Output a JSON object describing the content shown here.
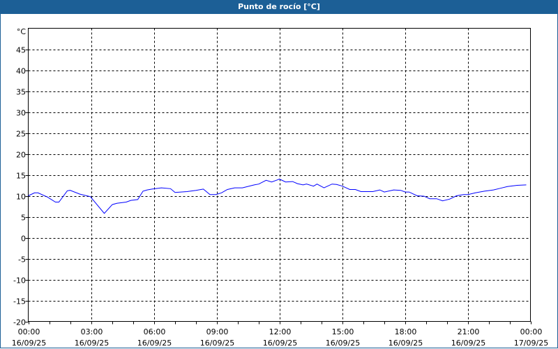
{
  "window": {
    "title": "Punto de rocío [°C]"
  },
  "chart_data": {
    "type": "line",
    "title": "Punto de rocío [°C]",
    "ylabel": "°C",
    "xlabel": "",
    "ylim": [
      -20,
      50
    ],
    "yticks": [
      -20,
      -15,
      -10,
      -5,
      0,
      5,
      10,
      15,
      20,
      25,
      30,
      35,
      40,
      45
    ],
    "xlim": [
      "16/09/25 00:00",
      "17/09/25 00:00"
    ],
    "xticks": [
      {
        "time": "00:00",
        "date": "16/09/25"
      },
      {
        "time": "03:00",
        "date": "16/09/25"
      },
      {
        "time": "06:00",
        "date": "16/09/25"
      },
      {
        "time": "09:00",
        "date": "16/09/25"
      },
      {
        "time": "12:00",
        "date": "16/09/25"
      },
      {
        "time": "15:00",
        "date": "16/09/25"
      },
      {
        "time": "18:00",
        "date": "16/09/25"
      },
      {
        "time": "21:00",
        "date": "16/09/25"
      },
      {
        "time": "00:00",
        "date": "17/09/25"
      }
    ],
    "grid": true,
    "series": [
      {
        "color": "#0000ff",
        "x": [
          "00:00",
          "00:18",
          "00:28",
          "00:55",
          "01:18",
          "01:28",
          "01:52",
          "02:00",
          "02:28",
          "02:58",
          "03:38",
          "04:01",
          "04:14",
          "04:41",
          "04:54",
          "05:14",
          "05:29",
          "05:41",
          "05:55",
          "06:22",
          "06:48",
          "07:01",
          "07:35",
          "08:01",
          "08:22",
          "08:41",
          "08:58",
          "09:14",
          "09:31",
          "09:52",
          "10:14",
          "10:48",
          "11:01",
          "11:22",
          "11:38",
          "11:58",
          "12:00",
          "12:18",
          "12:38",
          "12:52",
          "13:08",
          "13:18",
          "13:38",
          "13:48",
          "14:08",
          "14:31",
          "14:44",
          "15:01",
          "15:22",
          "15:38",
          "15:54",
          "16:28",
          "16:48",
          "17:01",
          "17:28",
          "17:48",
          "18:01",
          "18:12",
          "18:35",
          "18:55",
          "19:11",
          "19:31",
          "19:48",
          "20:08",
          "20:28",
          "20:48",
          "21:01",
          "21:22",
          "21:48",
          "22:14",
          "22:34",
          "22:54",
          "23:22",
          "23:48"
        ],
        "y": [
          10.0,
          10.7,
          10.7,
          9.7,
          8.5,
          8.5,
          11.2,
          11.3,
          10.4,
          9.8,
          5.8,
          7.9,
          8.2,
          8.5,
          8.9,
          9.1,
          11.1,
          11.4,
          11.6,
          11.9,
          11.7,
          10.8,
          11.0,
          11.3,
          11.6,
          10.3,
          10.3,
          10.7,
          11.5,
          11.9,
          11.9,
          12.6,
          12.8,
          13.7,
          13.3,
          13.9,
          14.0,
          13.3,
          13.4,
          12.9,
          12.6,
          12.8,
          12.3,
          12.8,
          11.9,
          12.8,
          12.7,
          12.3,
          11.5,
          11.5,
          11.0,
          11.0,
          11.4,
          10.9,
          11.4,
          11.3,
          10.9,
          10.9,
          10.0,
          9.9,
          9.3,
          9.3,
          8.8,
          9.2,
          10.0,
          10.3,
          10.3,
          10.7,
          11.1,
          11.4,
          11.8,
          12.2,
          12.5,
          12.6
        ]
      }
    ]
  }
}
